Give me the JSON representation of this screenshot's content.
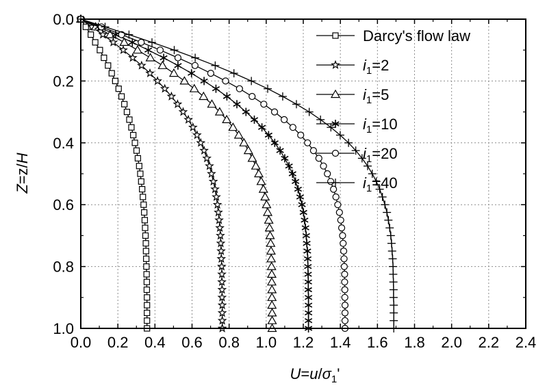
{
  "chart_data": {
    "type": "line",
    "xlabel": "U=u/σ1'",
    "xlabel_parts": {
      "main": "U",
      "mid": "=",
      "var": "u",
      "slash": "/",
      "sigma": "σ",
      "sub": "1",
      "prime": "'"
    },
    "ylabel": "Z=z/H",
    "ylabel_parts": {
      "main": "Z",
      "mid": "=z/",
      "var": "H"
    },
    "xlim": [
      0,
      2.4
    ],
    "ylim": [
      0,
      1.0
    ],
    "y_inverted": true,
    "grid": true,
    "legend_position": "top-right",
    "x_ticks": [
      "0.0",
      "0.2",
      "0.4",
      "0.6",
      "0.8",
      "1.0",
      "1.2",
      "1.4",
      "1.6",
      "1.8",
      "2.0",
      "2.2",
      "2.4"
    ],
    "y_ticks": [
      "0.0",
      "0.2",
      "0.4",
      "0.6",
      "0.8",
      "1.0"
    ],
    "y": [
      0,
      0.025,
      0.05,
      0.075,
      0.1,
      0.125,
      0.15,
      0.175,
      0.2,
      0.225,
      0.25,
      0.275,
      0.3,
      0.325,
      0.35,
      0.375,
      0.4,
      0.425,
      0.45,
      0.475,
      0.5,
      0.525,
      0.55,
      0.575,
      0.6,
      0.625,
      0.65,
      0.675,
      0.7,
      0.725,
      0.75,
      0.775,
      0.8,
      0.825,
      0.85,
      0.875,
      0.9,
      0.925,
      0.95,
      0.975,
      1.0
    ],
    "series": [
      {
        "name": "Darcy's flow law",
        "marker": "square",
        "x": [
          0,
          0.027,
          0.054,
          0.078,
          0.103,
          0.125,
          0.147,
          0.167,
          0.186,
          0.204,
          0.22,
          0.235,
          0.249,
          0.262,
          0.273,
          0.283,
          0.292,
          0.301,
          0.308,
          0.315,
          0.321,
          0.326,
          0.331,
          0.335,
          0.339,
          0.342,
          0.345,
          0.347,
          0.349,
          0.351,
          0.352,
          0.353,
          0.354,
          0.355,
          0.356,
          0.356,
          0.357,
          0.357,
          0.357,
          0.357,
          0.357
        ]
      },
      {
        "name": "i1=2",
        "label_main": "i",
        "label_sub": "1",
        "label_rest": "=2",
        "marker": "star",
        "x": [
          0,
          0.06,
          0.119,
          0.175,
          0.229,
          0.28,
          0.328,
          0.373,
          0.414,
          0.453,
          0.489,
          0.522,
          0.552,
          0.58,
          0.605,
          0.627,
          0.647,
          0.665,
          0.68,
          0.694,
          0.705,
          0.715,
          0.724,
          0.731,
          0.737,
          0.742,
          0.746,
          0.75,
          0.753,
          0.755,
          0.757,
          0.758,
          0.76,
          0.761,
          0.761,
          0.762,
          0.762,
          0.763,
          0.763,
          0.763,
          0.763
        ]
      },
      {
        "name": "i1=5",
        "label_main": "i",
        "label_sub": "1",
        "label_rest": "=5",
        "marker": "triangle",
        "x": [
          0,
          0.08,
          0.158,
          0.234,
          0.306,
          0.375,
          0.441,
          0.502,
          0.559,
          0.612,
          0.662,
          0.707,
          0.749,
          0.787,
          0.821,
          0.852,
          0.88,
          0.904,
          0.925,
          0.944,
          0.96,
          0.973,
          0.985,
          0.994,
          1.002,
          1.008,
          1.014,
          1.018,
          1.021,
          1.024,
          1.026,
          1.027,
          1.029,
          1.03,
          1.03,
          1.031,
          1.031,
          1.031,
          1.032,
          1.032,
          1.032
        ]
      },
      {
        "name": "i1=10",
        "label_main": "i",
        "label_sub": "1",
        "label_rest": "=10",
        "marker": "asterisk",
        "x": [
          0,
          0.095,
          0.188,
          0.278,
          0.364,
          0.447,
          0.524,
          0.597,
          0.665,
          0.729,
          0.788,
          0.842,
          0.891,
          0.936,
          0.977,
          1.013,
          1.046,
          1.075,
          1.1,
          1.123,
          1.142,
          1.158,
          1.172,
          1.183,
          1.193,
          1.201,
          1.207,
          1.212,
          1.216,
          1.219,
          1.222,
          1.224,
          1.225,
          1.226,
          1.227,
          1.227,
          1.228,
          1.228,
          1.228,
          1.228,
          1.228
        ]
      },
      {
        "name": "i1=20",
        "label_main": "i",
        "label_sub": "1",
        "label_rest": "=20",
        "marker": "circle",
        "x": [
          0,
          0.111,
          0.22,
          0.326,
          0.428,
          0.524,
          0.616,
          0.701,
          0.781,
          0.856,
          0.924,
          0.987,
          1.045,
          1.097,
          1.144,
          1.186,
          1.223,
          1.255,
          1.284,
          1.309,
          1.33,
          1.348,
          1.363,
          1.376,
          1.386,
          1.395,
          1.402,
          1.407,
          1.412,
          1.415,
          1.418,
          1.42,
          1.421,
          1.423,
          1.423,
          1.424,
          1.424,
          1.425,
          1.425,
          1.425,
          1.425
        ]
      },
      {
        "name": "i1=40",
        "label_main": "i",
        "label_sub": "1",
        "label_rest": "=40",
        "marker": "plus",
        "x": [
          0,
          0.131,
          0.26,
          0.384,
          0.504,
          0.617,
          0.725,
          0.826,
          0.92,
          1.008,
          1.089,
          1.163,
          1.232,
          1.293,
          1.349,
          1.399,
          1.444,
          1.483,
          1.517,
          1.547,
          1.572,
          1.594,
          1.612,
          1.627,
          1.64,
          1.651,
          1.659,
          1.666,
          1.672,
          1.676,
          1.679,
          1.682,
          1.684,
          1.685,
          1.686,
          1.687,
          1.687,
          1.688,
          1.688,
          1.688,
          1.688
        ]
      }
    ]
  }
}
